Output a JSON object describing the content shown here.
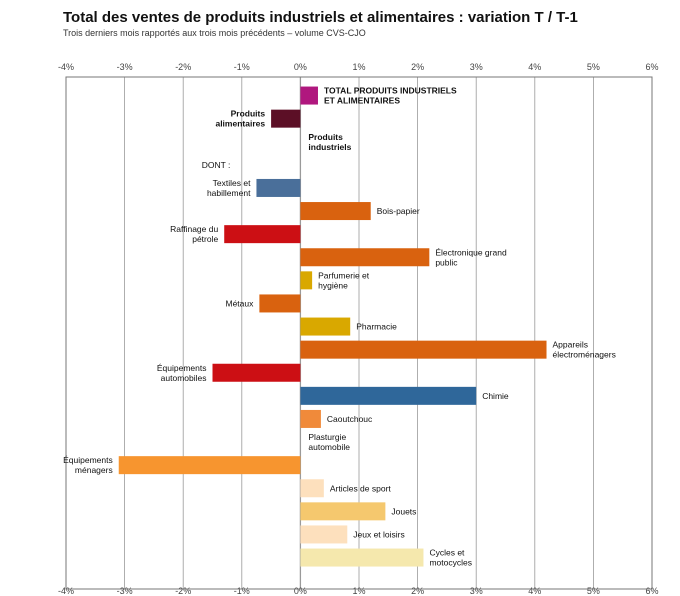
{
  "chart_data": {
    "type": "bar",
    "orientation": "horizontal",
    "title": "Total des ventes de produits industriels et alimentaires : variation T / T-1",
    "subtitle": "Trois derniers mois rapportés aux trois mois précédents – volume CVS-CJO",
    "x_ticks": [
      "-4%",
      "-3%",
      "-2%",
      "-1%",
      "0%",
      "1%",
      "2%",
      "3%",
      "4%",
      "5%",
      "6%"
    ],
    "xlim": [
      -4,
      6
    ],
    "grid": true,
    "categories": [
      {
        "label": "TOTAL PRODUITS INDUSTRIELS ET ALIMENTAIRES",
        "value": 0.3,
        "color": "#b0177e",
        "bold": true
      },
      {
        "label": "Produits alimentaires",
        "value": -0.5,
        "color": "#5c0f26",
        "bold": true
      },
      {
        "label": "Produits industriels",
        "value": 0.0,
        "color": "#888888",
        "bold": true
      },
      {
        "label": "DONT :",
        "value": null,
        "color": "#000000",
        "bold": false
      },
      {
        "label": "Textiles et habillement",
        "value": -0.75,
        "color": "#4a6f9a",
        "bold": false
      },
      {
        "label": "Bois-papier",
        "value": 1.2,
        "color": "#d9620f",
        "bold": false
      },
      {
        "label": "Raffinage du pétrole",
        "value": -1.3,
        "color": "#cc0f14",
        "bold": false
      },
      {
        "label": "Électronique grand public",
        "value": 2.2,
        "color": "#d9620f",
        "bold": false
      },
      {
        "label": "Parfumerie et hygiène",
        "value": 0.2,
        "color": "#d9a800",
        "bold": false
      },
      {
        "label": "Métaux",
        "value": -0.7,
        "color": "#d9620f",
        "bold": false
      },
      {
        "label": "Pharmacie",
        "value": 0.85,
        "color": "#d9a800",
        "bold": false
      },
      {
        "label": "Appareils électroménagers",
        "value": 4.2,
        "color": "#d9620f",
        "bold": false
      },
      {
        "label": "Équipements automobiles",
        "value": -1.5,
        "color": "#cc0f14",
        "bold": false
      },
      {
        "label": "Chimie",
        "value": 3.0,
        "color": "#2f679a",
        "bold": false
      },
      {
        "label": "Caoutchouc",
        "value": 0.35,
        "color": "#f08a3a",
        "bold": false
      },
      {
        "label": "Plasturgie automobile",
        "value": 0.0,
        "color": "#888888",
        "bold": false
      },
      {
        "label": "Équipements ménagers",
        "value": -3.1,
        "color": "#f7952f",
        "bold": false
      },
      {
        "label": "Articles de sport",
        "value": 0.4,
        "color": "#fde0bd",
        "bold": false
      },
      {
        "label": "Jouets",
        "value": 1.45,
        "color": "#f5c86e",
        "bold": false
      },
      {
        "label": "Jeux et loisirs",
        "value": 0.8,
        "color": "#fde0bd",
        "bold": false
      },
      {
        "label": "Cycles et motocycles",
        "value": 2.1,
        "color": "#f5e8ad",
        "bold": false
      }
    ]
  }
}
